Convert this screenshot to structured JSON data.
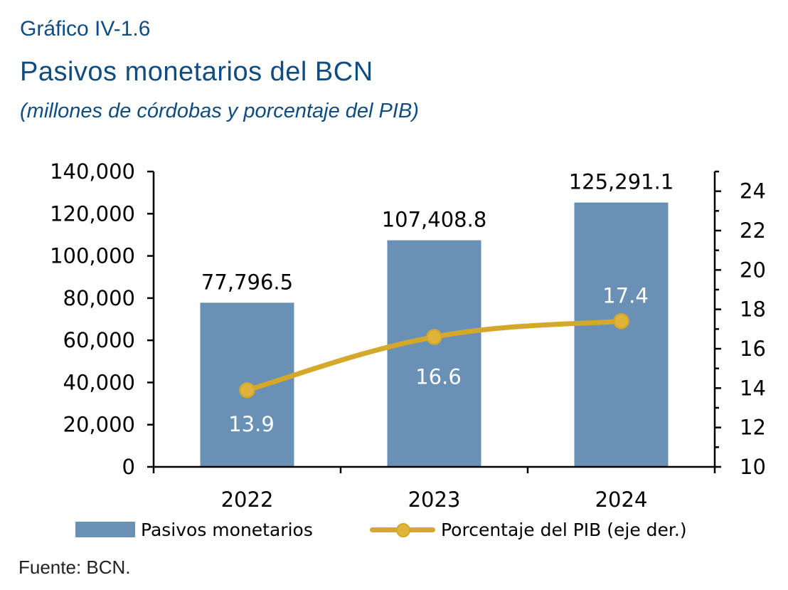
{
  "header": {
    "label": "Gráfico IV-1.6",
    "title": "Pasivos monetarios del BCN",
    "subtitle": "(millones de córdobas y porcentaje del PIB)"
  },
  "chart_data": {
    "type": "bar",
    "categories": [
      "2022",
      "2023",
      "2024"
    ],
    "series": [
      {
        "name": "Pasivos monetarios",
        "type": "bar",
        "axis": "left",
        "values": [
          77796.5,
          107408.8,
          125291.1
        ],
        "labels": [
          "77,796.5",
          "107,408.8",
          "125,291.1"
        ],
        "color": "#6891b5"
      },
      {
        "name": "Porcentaje del PIB (eje der.)",
        "type": "line",
        "axis": "right",
        "values": [
          13.9,
          16.6,
          17.4
        ],
        "labels": [
          "13.9",
          "16.6",
          "17.4"
        ],
        "color": "#d4a92b"
      }
    ],
    "y_left": {
      "lim": [
        0,
        140000
      ],
      "ticks": [
        "0",
        "20,000",
        "40,000",
        "60,000",
        "80,000",
        "100,000",
        "120,000",
        "140,000"
      ]
    },
    "y_right": {
      "lim": [
        10,
        25
      ],
      "ticks": [
        "10",
        "12",
        "14",
        "16",
        "18",
        "20",
        "22",
        "24"
      ]
    },
    "grid": false,
    "legend": "bottom"
  },
  "source": "Fuente: BCN."
}
